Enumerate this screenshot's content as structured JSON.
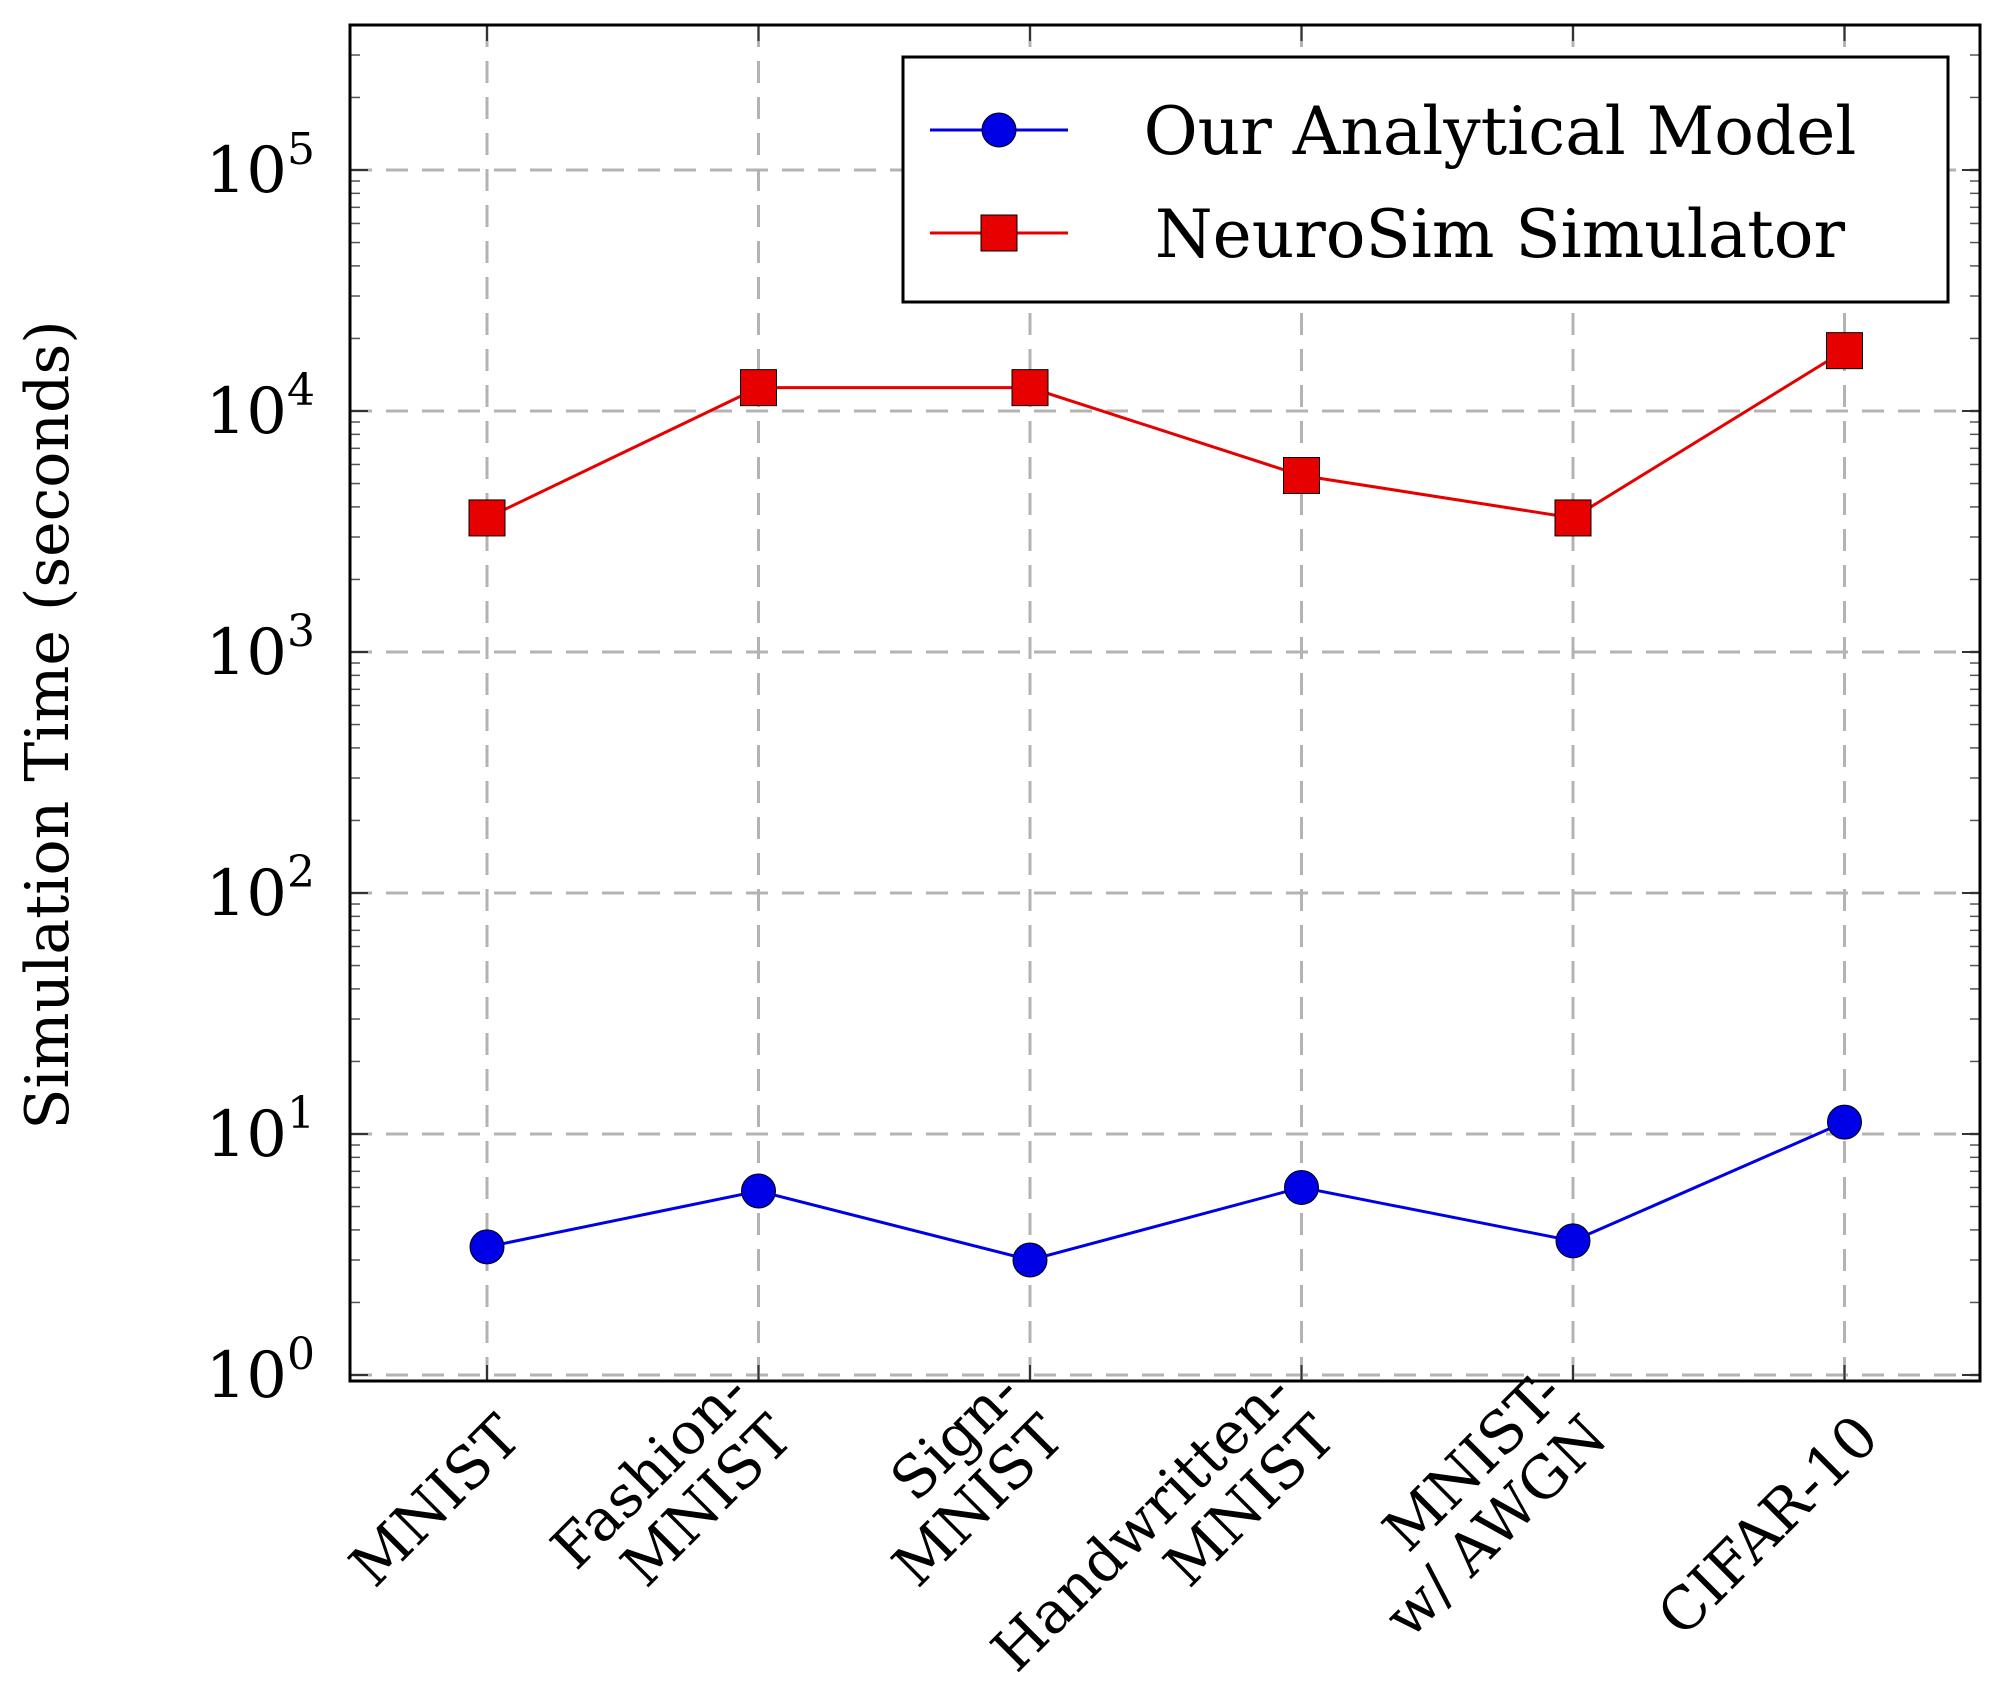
{
  "chart_data": {
    "type": "line",
    "title": "",
    "xlabel": "",
    "ylabel": "Simulation Time (seconds)",
    "yscale": "log",
    "ylim": [
      1,
      400000
    ],
    "yticks": [
      {
        "value": 1,
        "base": "10",
        "exp": "0"
      },
      {
        "value": 10,
        "base": "10",
        "exp": "1"
      },
      {
        "value": 100,
        "base": "10",
        "exp": "2"
      },
      {
        "value": 1000,
        "base": "10",
        "exp": "3"
      },
      {
        "value": 10000,
        "base": "10",
        "exp": "4"
      },
      {
        "value": 100000,
        "base": "10",
        "exp": "5"
      }
    ],
    "categories": [
      [
        "MNIST"
      ],
      [
        "Fashion-",
        "MNIST"
      ],
      [
        "Sign-",
        "MNIST"
      ],
      [
        "Handwritten-",
        "MNIST"
      ],
      [
        "MNIST-",
        "w/ AWGN"
      ],
      [
        "CIFAR-10"
      ]
    ],
    "grid": true,
    "legend_position": "top-right",
    "series": [
      {
        "name": "Our Analytical Model",
        "color": "#0000e6",
        "marker": "circle",
        "values": [
          3.4,
          5.8,
          3.0,
          6.0,
          3.6,
          11.2
        ]
      },
      {
        "name": "NeuroSim Simulator",
        "color": "#e60000",
        "marker": "square",
        "values": [
          3600,
          12500,
          12500,
          5400,
          3600,
          17800
        ]
      }
    ]
  }
}
